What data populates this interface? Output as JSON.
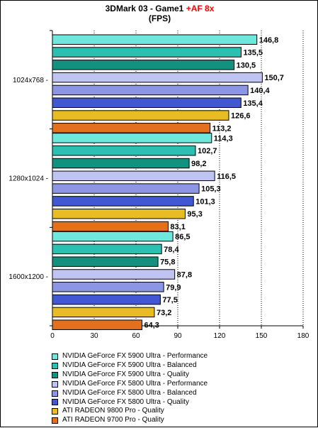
{
  "chart_data": {
    "type": "bar",
    "orientation": "horizontal",
    "title": "3DMark 03 - Game1",
    "title_accent": "+AF 8x",
    "subtitle": "(FPS)",
    "categories": [
      "1024x768",
      "1280x1024",
      "1600x1200"
    ],
    "category_suffix": " -",
    "xlim": [
      0,
      180
    ],
    "x_ticks": [
      "0",
      "30",
      "60",
      "90",
      "120",
      "150",
      "180"
    ],
    "x_tick_values": [
      0,
      30,
      60,
      90,
      120,
      150,
      180
    ],
    "legend_position": "bottom",
    "series": [
      {
        "name": "NVIDIA GeForce FX 5900 Ultra - Performance",
        "color": "#6ee8dc",
        "values": [
          146.8,
          114.3,
          86.5
        ],
        "labels": [
          "146,8",
          "114,3",
          "86,5"
        ]
      },
      {
        "name": "NVIDIA GeForce FX 5900 Ultra - Balanced",
        "color": "#2cc0b2",
        "values": [
          135.5,
          102.7,
          78.4
        ],
        "labels": [
          "135,5",
          "102,7",
          "78,4"
        ]
      },
      {
        "name": "NVIDIA GeForce FX 5900 Ultra - Quality",
        "color": "#12917f",
        "values": [
          130.5,
          98.2,
          75.8
        ],
        "labels": [
          "130,5",
          "98,2",
          "75,8"
        ]
      },
      {
        "name": "NVIDIA GeForce FX 5800 Ultra - Performance",
        "color": "#c0c4f2",
        "values": [
          150.7,
          116.5,
          87.8
        ],
        "labels": [
          "150,7",
          "116,5",
          "87,8"
        ]
      },
      {
        "name": "NVIDIA GeForce FX 5800 Ultra - Balanced",
        "color": "#8c96e4",
        "values": [
          140.4,
          105.3,
          79.9
        ],
        "labels": [
          "140,4",
          "105,3",
          "79,9"
        ]
      },
      {
        "name": "NVIDIA GeForce FX 5800 Ultra - Quality",
        "color": "#4158d2",
        "values": [
          135.4,
          101.3,
          77.5
        ],
        "labels": [
          "135,4",
          "101,3",
          "77,5"
        ]
      },
      {
        "name": "ATI RADEON 9800 Pro - Quality",
        "color": "#e8bc24",
        "values": [
          126.6,
          95.3,
          73.2
        ],
        "labels": [
          "126,6",
          "95,3",
          "73,2"
        ]
      },
      {
        "name": "ATI RADEON 9700 Pro - Quality",
        "color": "#e2701c",
        "values": [
          113.2,
          83.1,
          64.3
        ],
        "labels": [
          "113,2",
          "83,1",
          "64,3"
        ]
      }
    ]
  }
}
